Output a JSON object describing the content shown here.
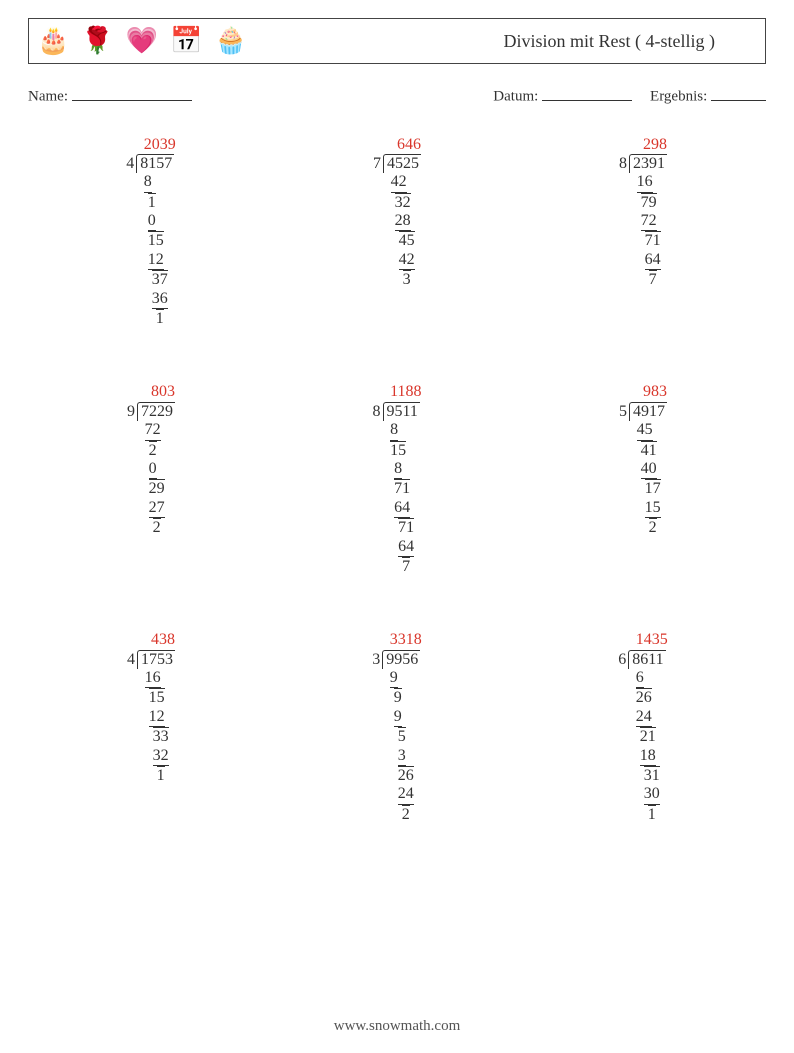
{
  "icons": [
    "🎂",
    "🌹",
    "💗",
    "📅",
    "🧁"
  ],
  "title": "Division mit Rest ( 4-stellig )",
  "labels": {
    "name": "Name:",
    "date": "Datum:",
    "result": "Ergebnis:"
  },
  "colors": {
    "quotient": "#d9362b",
    "text": "#333333",
    "border": "#444444",
    "background": "#ffffff"
  },
  "font": {
    "family": "Georgia, serif",
    "body_size_pt": 12,
    "title_size_pt": 14
  },
  "problems": [
    {
      "divisor": "4",
      "dividend": "8157",
      "quotient": "2039",
      "steps": [
        {
          "t": "8",
          "indent": 0,
          "bar": true
        },
        {
          "t": "1",
          "indent": 1,
          "over": true
        },
        {
          "t": "0",
          "indent": 1,
          "bar": true
        },
        {
          "t": "15",
          "indent": 1,
          "over": true
        },
        {
          "t": "12",
          "indent": 1,
          "bar": true
        },
        {
          "t": "37",
          "indent": 2,
          "over": true
        },
        {
          "t": "36",
          "indent": 2,
          "bar": true
        },
        {
          "t": "1",
          "indent": 3,
          "over": true
        }
      ]
    },
    {
      "divisor": "7",
      "dividend": "4525",
      "quotient": "646",
      "steps": [
        {
          "t": "42",
          "indent": 0,
          "bar": true
        },
        {
          "t": "32",
          "indent": 1,
          "over": true
        },
        {
          "t": "28",
          "indent": 1,
          "bar": true
        },
        {
          "t": "45",
          "indent": 2,
          "over": true
        },
        {
          "t": "42",
          "indent": 2,
          "bar": true
        },
        {
          "t": "3",
          "indent": 3,
          "over": true
        }
      ]
    },
    {
      "divisor": "8",
      "dividend": "2391",
      "quotient": "298",
      "steps": [
        {
          "t": "16",
          "indent": 0,
          "bar": true
        },
        {
          "t": "79",
          "indent": 1,
          "over": true
        },
        {
          "t": "72",
          "indent": 1,
          "bar": true
        },
        {
          "t": "71",
          "indent": 2,
          "over": true
        },
        {
          "t": "64",
          "indent": 2,
          "bar": true
        },
        {
          "t": "7",
          "indent": 3,
          "over": true
        }
      ]
    },
    {
      "divisor": "9",
      "dividend": "7229",
      "quotient": "803",
      "steps": [
        {
          "t": "72",
          "indent": 0,
          "bar": true
        },
        {
          "t": "2",
          "indent": 1,
          "over": true
        },
        {
          "t": "0",
          "indent": 1,
          "bar": true
        },
        {
          "t": "29",
          "indent": 1,
          "over": true
        },
        {
          "t": "27",
          "indent": 1,
          "bar": true
        },
        {
          "t": "2",
          "indent": 2,
          "over": true
        }
      ]
    },
    {
      "divisor": "8",
      "dividend": "9511",
      "quotient": "1188",
      "steps": [
        {
          "t": "8",
          "indent": 0,
          "bar": true
        },
        {
          "t": "15",
          "indent": 0,
          "over": true
        },
        {
          "t": "8",
          "indent": 1,
          "bar": true
        },
        {
          "t": "71",
          "indent": 1,
          "over": true
        },
        {
          "t": "64",
          "indent": 1,
          "bar": true
        },
        {
          "t": "71",
          "indent": 2,
          "over": true
        },
        {
          "t": "64",
          "indent": 2,
          "bar": true
        },
        {
          "t": "7",
          "indent": 3,
          "over": true
        }
      ]
    },
    {
      "divisor": "5",
      "dividend": "4917",
      "quotient": "983",
      "steps": [
        {
          "t": "45",
          "indent": 0,
          "bar": true
        },
        {
          "t": "41",
          "indent": 1,
          "over": true
        },
        {
          "t": "40",
          "indent": 1,
          "bar": true
        },
        {
          "t": "17",
          "indent": 2,
          "over": true
        },
        {
          "t": "15",
          "indent": 2,
          "bar": true
        },
        {
          "t": "2",
          "indent": 3,
          "over": true
        }
      ]
    },
    {
      "divisor": "4",
      "dividend": "1753",
      "quotient": "438",
      "steps": [
        {
          "t": "16",
          "indent": 0,
          "bar": true
        },
        {
          "t": "15",
          "indent": 1,
          "over": true
        },
        {
          "t": "12",
          "indent": 1,
          "bar": true
        },
        {
          "t": "33",
          "indent": 2,
          "over": true
        },
        {
          "t": "32",
          "indent": 2,
          "bar": true
        },
        {
          "t": "1",
          "indent": 3,
          "over": true
        }
      ]
    },
    {
      "divisor": "3",
      "dividend": "9956",
      "quotient": "3318",
      "steps": [
        {
          "t": "9",
          "indent": 0,
          "bar": true
        },
        {
          "t": "9",
          "indent": 1,
          "over": true
        },
        {
          "t": "9",
          "indent": 1,
          "bar": true
        },
        {
          "t": "5",
          "indent": 2,
          "over": true
        },
        {
          "t": "3",
          "indent": 2,
          "bar": true
        },
        {
          "t": "26",
          "indent": 2,
          "over": true
        },
        {
          "t": "24",
          "indent": 2,
          "bar": true
        },
        {
          "t": "2",
          "indent": 3,
          "over": true
        }
      ]
    },
    {
      "divisor": "6",
      "dividend": "8611",
      "quotient": "1435",
      "steps": [
        {
          "t": "6",
          "indent": 0,
          "bar": true
        },
        {
          "t": "26",
          "indent": 0,
          "over": true
        },
        {
          "t": "24",
          "indent": 0,
          "bar": true
        },
        {
          "t": "21",
          "indent": 1,
          "over": true
        },
        {
          "t": "18",
          "indent": 1,
          "bar": true
        },
        {
          "t": "31",
          "indent": 2,
          "over": true
        },
        {
          "t": "30",
          "indent": 2,
          "bar": true
        },
        {
          "t": "1",
          "indent": 3,
          "over": true
        }
      ]
    }
  ],
  "footer": "www.snowmath.com"
}
